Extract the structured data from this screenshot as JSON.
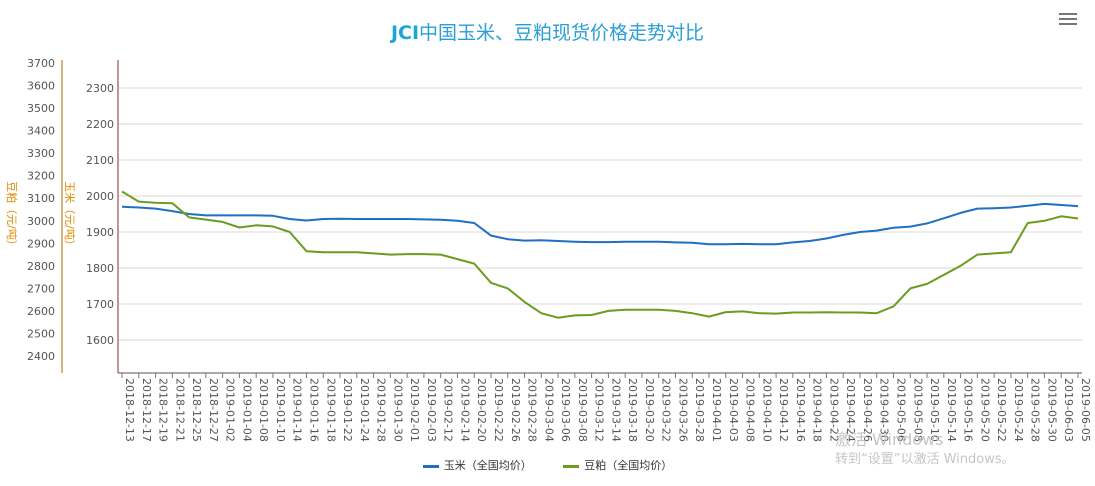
{
  "title": {
    "brand": "JCI",
    "text": "中国玉米、豆粕现货价格走势对比"
  },
  "menu": {
    "icon": "hamburger-menu-icon"
  },
  "watermark": {
    "line1": "激活 Windows",
    "line2": "转到“设置”以激活 Windows。"
  },
  "chart_data": {
    "type": "line",
    "title": "JCI中国玉米、豆粕现货价格走势对比",
    "x": [
      "2018-12-13",
      "2018-12-17",
      "2018-12-19",
      "2018-12-21",
      "2018-12-25",
      "2018-12-27",
      "2019-01-02",
      "2019-01-04",
      "2019-01-08",
      "2019-01-10",
      "2019-01-14",
      "2019-01-16",
      "2019-01-18",
      "2019-01-22",
      "2019-01-24",
      "2019-01-28",
      "2019-01-30",
      "2019-02-01",
      "2019-02-03",
      "2019-02-12",
      "2019-02-14",
      "2019-02-20",
      "2019-02-22",
      "2019-02-26",
      "2019-02-28",
      "2019-03-04",
      "2019-03-06",
      "2019-03-08",
      "2019-03-12",
      "2019-03-14",
      "2019-03-18",
      "2019-03-20",
      "2019-03-22",
      "2019-03-26",
      "2019-03-28",
      "2019-04-01",
      "2019-04-03",
      "2019-04-08",
      "2019-04-10",
      "2019-04-12",
      "2019-04-16",
      "2019-04-18",
      "2019-04-22",
      "2019-04-24",
      "2019-04-26",
      "2019-04-30",
      "2019-05-06",
      "2019-05-08",
      "2019-05-10",
      "2019-05-14",
      "2019-05-16",
      "2019-05-20",
      "2019-05-22",
      "2019-05-24",
      "2019-05-28",
      "2019-05-30",
      "2019-06-03",
      "2019-06-05"
    ],
    "left_axis": {
      "label": "豆粕（元/吨）",
      "ylim": [
        2400,
        3700
      ],
      "ticks": [
        2400,
        2500,
        2600,
        2700,
        2800,
        2900,
        3000,
        3100,
        3200,
        3300,
        3400,
        3500,
        3600,
        3700
      ],
      "color": "#e08a00"
    },
    "right_axis": {
      "label": "玉米（元/吨）",
      "ylim": [
        1600,
        2300
      ],
      "ticks": [
        1600,
        1700,
        1800,
        1900,
        2000,
        2100,
        2200,
        2300
      ]
    },
    "grid": true,
    "legend_position": "bottom",
    "series": [
      {
        "name": "玉米（全国均价）",
        "axis": "right",
        "color": "#1f6fc5",
        "values": [
          1970,
          1968,
          1965,
          1958,
          1950,
          1946,
          1946,
          1946,
          1946,
          1945,
          1936,
          1932,
          1936,
          1937,
          1936,
          1936,
          1936,
          1936,
          1935,
          1934,
          1931,
          1925,
          1890,
          1880,
          1876,
          1877,
          1875,
          1873,
          1872,
          1872,
          1873,
          1873,
          1873,
          1871,
          1870,
          1866,
          1866,
          1867,
          1866,
          1866,
          1871,
          1875,
          1882,
          1892,
          1900,
          1904,
          1912,
          1915,
          1924,
          1938,
          1953,
          1965,
          1966,
          1968,
          1973,
          1978,
          1975,
          1972
        ]
      },
      {
        "name": "豆粕（全国均价）",
        "axis": "left",
        "color": "#6a9c1f",
        "values": [
          3130,
          3085,
          3080,
          3078,
          3015,
          3005,
          2995,
          2970,
          2980,
          2975,
          2950,
          2865,
          2860,
          2860,
          2860,
          2855,
          2850,
          2852,
          2852,
          2850,
          2830,
          2810,
          2725,
          2700,
          2640,
          2590,
          2570,
          2580,
          2582,
          2600,
          2605,
          2605,
          2605,
          2600,
          2590,
          2575,
          2595,
          2598,
          2590,
          2588,
          2593,
          2593,
          2594,
          2593,
          2593,
          2590,
          2620,
          2700,
          2720,
          2760,
          2800,
          2850,
          2855,
          2860,
          2990,
          3000,
          3020,
          3010
        ]
      }
    ]
  }
}
